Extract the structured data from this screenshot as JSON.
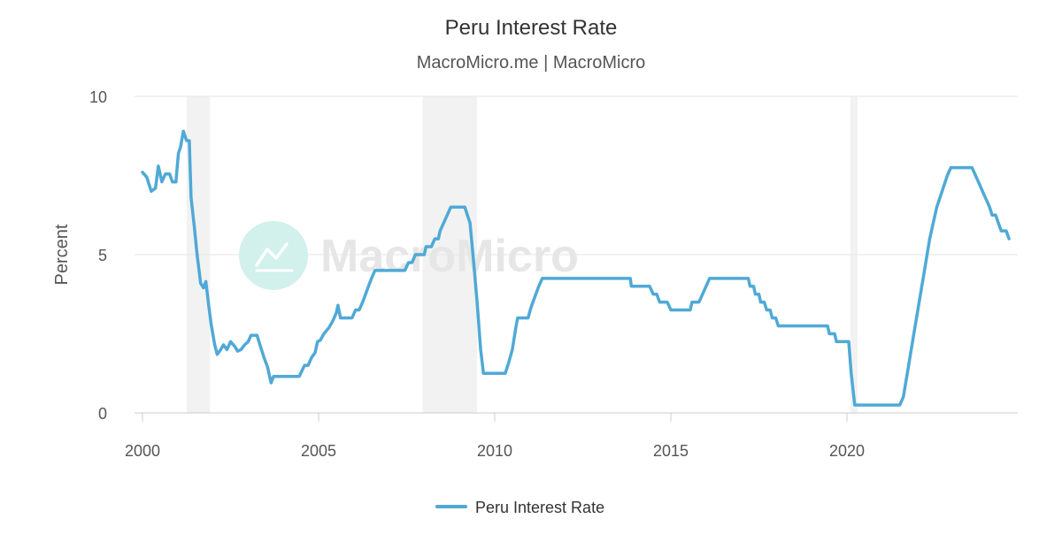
{
  "chart_data": {
    "type": "line",
    "title": "Peru Interest Rate",
    "subtitle": "MacroMicro.me | MacroMicro",
    "ylabel": "Percent",
    "xlabel": "",
    "xlim": [
      2000,
      2024.7
    ],
    "ylim": [
      0,
      10
    ],
    "x_ticks": [
      2000,
      2005,
      2010,
      2015,
      2020
    ],
    "y_ticks": [
      0,
      5,
      10
    ],
    "grid": true,
    "legend_position": "bottom",
    "recession_periods": [
      [
        2001.25,
        2001.92
      ],
      [
        2007.95,
        2009.5
      ],
      [
        2020.1,
        2020.3
      ]
    ],
    "series": [
      {
        "name": "Peru Interest Rate",
        "color": "#4fa9d6",
        "points": [
          [
            2000.0,
            7.6
          ],
          [
            2000.12,
            7.45
          ],
          [
            2000.25,
            7.0
          ],
          [
            2000.37,
            7.1
          ],
          [
            2000.45,
            7.8
          ],
          [
            2000.55,
            7.3
          ],
          [
            2000.65,
            7.55
          ],
          [
            2000.77,
            7.55
          ],
          [
            2000.85,
            7.3
          ],
          [
            2000.95,
            7.3
          ],
          [
            2001.02,
            8.2
          ],
          [
            2001.08,
            8.4
          ],
          [
            2001.16,
            8.9
          ],
          [
            2001.25,
            8.6
          ],
          [
            2001.33,
            8.6
          ],
          [
            2001.38,
            6.8
          ],
          [
            2001.47,
            5.9
          ],
          [
            2001.55,
            5.0
          ],
          [
            2001.65,
            4.1
          ],
          [
            2001.73,
            3.95
          ],
          [
            2001.8,
            4.15
          ],
          [
            2001.88,
            3.4
          ],
          [
            2001.95,
            2.8
          ],
          [
            2002.05,
            2.15
          ],
          [
            2002.12,
            1.85
          ],
          [
            2002.22,
            2.0
          ],
          [
            2002.3,
            2.15
          ],
          [
            2002.4,
            2.0
          ],
          [
            2002.5,
            2.25
          ],
          [
            2002.62,
            2.1
          ],
          [
            2002.7,
            1.95
          ],
          [
            2002.8,
            2.0
          ],
          [
            2002.9,
            2.15
          ],
          [
            2003.0,
            2.25
          ],
          [
            2003.08,
            2.45
          ],
          [
            2003.25,
            2.45
          ],
          [
            2003.35,
            2.1
          ],
          [
            2003.45,
            1.75
          ],
          [
            2003.55,
            1.45
          ],
          [
            2003.65,
            0.95
          ],
          [
            2003.72,
            1.15
          ],
          [
            2003.85,
            1.15
          ],
          [
            2004.0,
            1.15
          ],
          [
            2004.2,
            1.15
          ],
          [
            2004.45,
            1.15
          ],
          [
            2004.6,
            1.5
          ],
          [
            2004.7,
            1.5
          ],
          [
            2004.8,
            1.75
          ],
          [
            2004.9,
            1.9
          ],
          [
            2004.97,
            2.25
          ],
          [
            2005.05,
            2.3
          ],
          [
            2005.15,
            2.5
          ],
          [
            2005.3,
            2.7
          ],
          [
            2005.4,
            2.9
          ],
          [
            2005.5,
            3.15
          ],
          [
            2005.55,
            3.4
          ],
          [
            2005.62,
            3.0
          ],
          [
            2005.75,
            3.0
          ],
          [
            2005.95,
            3.0
          ],
          [
            2006.05,
            3.25
          ],
          [
            2006.15,
            3.25
          ],
          [
            2006.25,
            3.5
          ],
          [
            2006.35,
            3.8
          ],
          [
            2006.45,
            4.1
          ],
          [
            2006.52,
            4.3
          ],
          [
            2006.6,
            4.5
          ],
          [
            2006.8,
            4.5
          ],
          [
            2007.0,
            4.5
          ],
          [
            2007.2,
            4.5
          ],
          [
            2007.45,
            4.5
          ],
          [
            2007.55,
            4.75
          ],
          [
            2007.65,
            4.75
          ],
          [
            2007.75,
            5.0
          ],
          [
            2008.0,
            5.0
          ],
          [
            2008.05,
            5.25
          ],
          [
            2008.2,
            5.25
          ],
          [
            2008.3,
            5.5
          ],
          [
            2008.4,
            5.5
          ],
          [
            2008.45,
            5.75
          ],
          [
            2008.55,
            6.0
          ],
          [
            2008.65,
            6.25
          ],
          [
            2008.75,
            6.5
          ],
          [
            2009.0,
            6.5
          ],
          [
            2009.15,
            6.5
          ],
          [
            2009.3,
            6.0
          ],
          [
            2009.4,
            4.8
          ],
          [
            2009.5,
            3.5
          ],
          [
            2009.6,
            2.0
          ],
          [
            2009.68,
            1.25
          ],
          [
            2009.85,
            1.25
          ],
          [
            2010.0,
            1.25
          ],
          [
            2010.15,
            1.25
          ],
          [
            2010.3,
            1.25
          ],
          [
            2010.4,
            1.6
          ],
          [
            2010.5,
            2.0
          ],
          [
            2010.6,
            2.7
          ],
          [
            2010.65,
            3.0
          ],
          [
            2010.85,
            3.0
          ],
          [
            2010.95,
            3.0
          ],
          [
            2011.02,
            3.3
          ],
          [
            2011.15,
            3.7
          ],
          [
            2011.25,
            4.0
          ],
          [
            2011.35,
            4.25
          ],
          [
            2011.5,
            4.25
          ],
          [
            2012.0,
            4.25
          ],
          [
            2012.5,
            4.25
          ],
          [
            2013.0,
            4.25
          ],
          [
            2013.5,
            4.25
          ],
          [
            2013.85,
            4.25
          ],
          [
            2013.88,
            4.0
          ],
          [
            2014.15,
            4.0
          ],
          [
            2014.4,
            4.0
          ],
          [
            2014.5,
            3.75
          ],
          [
            2014.6,
            3.75
          ],
          [
            2014.68,
            3.5
          ],
          [
            2014.9,
            3.5
          ],
          [
            2015.0,
            3.25
          ],
          [
            2015.2,
            3.25
          ],
          [
            2015.4,
            3.25
          ],
          [
            2015.55,
            3.25
          ],
          [
            2015.6,
            3.5
          ],
          [
            2015.8,
            3.5
          ],
          [
            2015.9,
            3.75
          ],
          [
            2016.0,
            4.0
          ],
          [
            2016.1,
            4.25
          ],
          [
            2016.4,
            4.25
          ],
          [
            2016.8,
            4.25
          ],
          [
            2017.2,
            4.25
          ],
          [
            2017.25,
            4.0
          ],
          [
            2017.35,
            4.0
          ],
          [
            2017.4,
            3.75
          ],
          [
            2017.5,
            3.75
          ],
          [
            2017.55,
            3.5
          ],
          [
            2017.65,
            3.5
          ],
          [
            2017.72,
            3.25
          ],
          [
            2017.82,
            3.25
          ],
          [
            2017.88,
            3.0
          ],
          [
            2017.98,
            3.0
          ],
          [
            2018.05,
            2.75
          ],
          [
            2018.25,
            2.75
          ],
          [
            2018.5,
            2.75
          ],
          [
            2018.8,
            2.75
          ],
          [
            2019.2,
            2.75
          ],
          [
            2019.45,
            2.75
          ],
          [
            2019.5,
            2.5
          ],
          [
            2019.65,
            2.5
          ],
          [
            2019.7,
            2.25
          ],
          [
            2019.9,
            2.25
          ],
          [
            2020.05,
            2.25
          ],
          [
            2020.12,
            1.25
          ],
          [
            2020.22,
            0.25
          ],
          [
            2020.5,
            0.25
          ],
          [
            2020.8,
            0.25
          ],
          [
            2021.2,
            0.25
          ],
          [
            2021.5,
            0.25
          ],
          [
            2021.6,
            0.5
          ],
          [
            2021.75,
            1.5
          ],
          [
            2021.9,
            2.5
          ],
          [
            2022.05,
            3.5
          ],
          [
            2022.2,
            4.5
          ],
          [
            2022.35,
            5.5
          ],
          [
            2022.55,
            6.5
          ],
          [
            2022.7,
            7.0
          ],
          [
            2022.85,
            7.5
          ],
          [
            2022.95,
            7.75
          ],
          [
            2023.2,
            7.75
          ],
          [
            2023.45,
            7.75
          ],
          [
            2023.55,
            7.75
          ],
          [
            2023.65,
            7.5
          ],
          [
            2023.75,
            7.25
          ],
          [
            2023.85,
            7.0
          ],
          [
            2023.95,
            6.75
          ],
          [
            2024.05,
            6.5
          ],
          [
            2024.12,
            6.25
          ],
          [
            2024.22,
            6.25
          ],
          [
            2024.3,
            6.0
          ],
          [
            2024.38,
            5.75
          ],
          [
            2024.52,
            5.75
          ],
          [
            2024.6,
            5.5
          ]
        ]
      }
    ]
  },
  "watermark": {
    "text": "MacroMicro",
    "icon": "chart-logo-icon"
  }
}
